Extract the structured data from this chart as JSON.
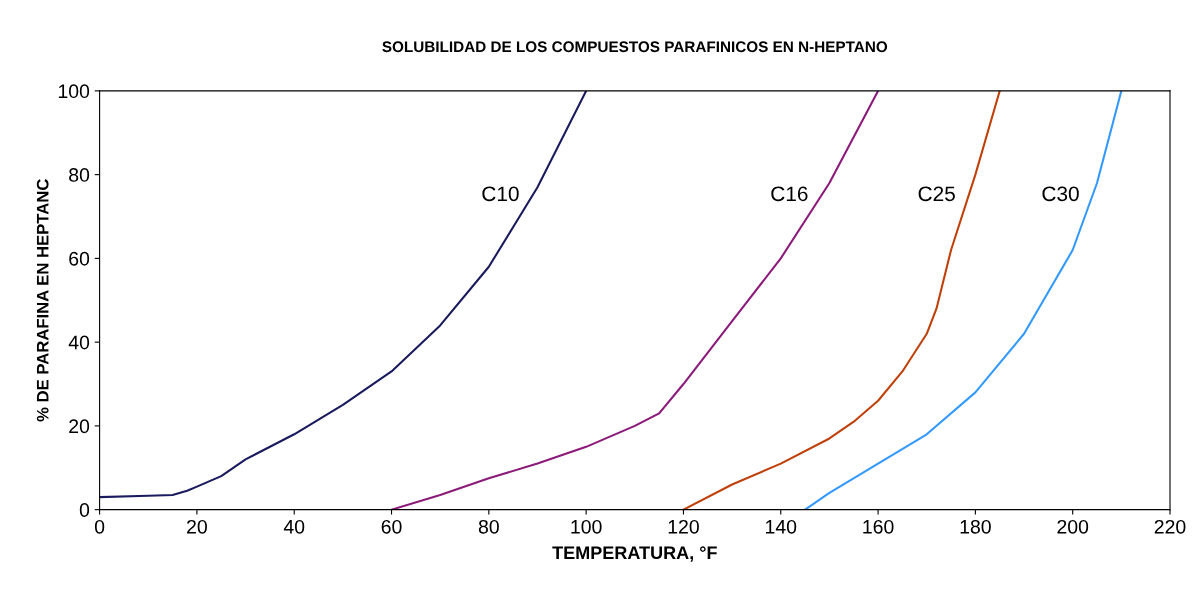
{
  "chart_data": {
    "type": "line",
    "title": "SOLUBILIDAD DE LOS COMPUESTOS PARAFINICOS EN N-HEPTANO",
    "xlabel": "TEMPERATURA, °F",
    "ylabel": "% DE PARAFINA EN HEPTANC",
    "xlim": [
      0,
      220
    ],
    "xticks": [
      0,
      20,
      40,
      60,
      80,
      100,
      120,
      140,
      160,
      180,
      200,
      220
    ],
    "ylim": [
      0,
      100
    ],
    "yticks": [
      0,
      20,
      40,
      60,
      80,
      100
    ],
    "grid": false,
    "legend": false,
    "marker": "none",
    "line_style": "solid",
    "series": [
      {
        "name": "C10",
        "color": "#1a1a5e",
        "x": [
          0,
          10,
          15,
          18,
          20,
          25,
          30,
          40,
          50,
          60,
          70,
          80,
          90,
          100
        ],
        "values": [
          3,
          3.3,
          3.5,
          4.5,
          5.5,
          8,
          12,
          18,
          25,
          33,
          44,
          58,
          77,
          100
        ]
      },
      {
        "name": "C16",
        "color": "#8b1a7a",
        "x": [
          60,
          70,
          80,
          90,
          100,
          110,
          115,
          120,
          130,
          140,
          150,
          160
        ],
        "values": [
          0,
          3.5,
          7.5,
          11,
          15,
          20,
          23,
          30,
          45,
          60,
          78,
          100
        ]
      },
      {
        "name": "C25",
        "color": "#c0400a",
        "x": [
          120,
          130,
          140,
          150,
          155,
          160,
          165,
          170,
          172,
          175,
          180,
          185
        ],
        "values": [
          0,
          6,
          11,
          17,
          21,
          26,
          33,
          42,
          48,
          62,
          80,
          100
        ]
      },
      {
        "name": "C30",
        "color": "#3399ff",
        "x": [
          145,
          150,
          160,
          170,
          180,
          190,
          200,
          205,
          210
        ],
        "values": [
          0,
          4,
          11,
          18,
          28,
          42,
          62,
          78,
          100
        ]
      }
    ]
  }
}
